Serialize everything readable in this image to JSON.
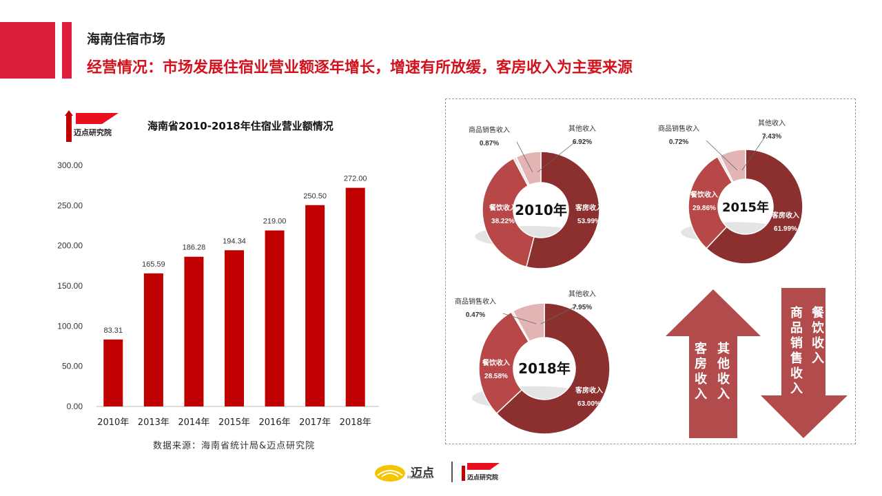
{
  "header": {
    "title": "海南住宿市场",
    "subtitle": "经营情况：市场发展住宿业营业额逐年增长，增速有所放缓，客房收入为主要来源"
  },
  "logo": {
    "name": "迈点研究院"
  },
  "source": "数据来源：海南省统计局&迈点研究院",
  "footer": {
    "brand": "迈点",
    "brand_sub": "Meadin.com",
    "institute": "迈点研究院"
  },
  "arrows": {
    "up_label": "客房收入\n其他收入",
    "down_label": "商品销售收入\n餐饮收入"
  },
  "colors": {
    "bar": "#c00000",
    "accent": "#dc1e3c",
    "donut_room": "#8c2f2f",
    "donut_food": "#b84848",
    "donut_other": "#e2b4b4",
    "donut_goods": "#f0dede"
  },
  "chart_data": [
    {
      "type": "bar",
      "title": "海南省2010-2018年住宿业营业额情况",
      "categories": [
        "2010年",
        "2013年",
        "2014年",
        "2015年",
        "2016年",
        "2017年",
        "2018年"
      ],
      "values": [
        83.31,
        165.59,
        186.28,
        194.34,
        219.0,
        250.5,
        272.0
      ],
      "value_labels": [
        "83.31",
        "165.59",
        "186.28",
        "194.34",
        "219.00",
        "250.50",
        "272.00"
      ],
      "yticks": [
        "0.00",
        "50.00",
        "100.00",
        "150.00",
        "200.00",
        "250.00",
        "300.00"
      ],
      "ylim": [
        0,
        300
      ],
      "grid": false
    },
    {
      "type": "pie",
      "title": "2010年",
      "slices": [
        {
          "name": "客房收入",
          "value": 53.99,
          "label": "53.99%"
        },
        {
          "name": "餐饮收入",
          "value": 38.22,
          "label": "38.22%"
        },
        {
          "name": "商品销售收入",
          "value": 0.87,
          "label": "0.87%"
        },
        {
          "name": "其他收入",
          "value": 6.92,
          "label": "6.92%"
        }
      ]
    },
    {
      "type": "pie",
      "title": "2015年",
      "slices": [
        {
          "name": "客房收入",
          "value": 61.99,
          "label": "61.99%"
        },
        {
          "name": "餐饮收入",
          "value": 29.86,
          "label": "29.86%"
        },
        {
          "name": "商品销售收入",
          "value": 0.72,
          "label": "0.72%"
        },
        {
          "name": "其他收入",
          "value": 7.43,
          "label": "7.43%"
        }
      ]
    },
    {
      "type": "pie",
      "title": "2018年",
      "slices": [
        {
          "name": "客房收入",
          "value": 63.0,
          "label": "63.00%"
        },
        {
          "name": "餐饮收入",
          "value": 28.58,
          "label": "28.58%"
        },
        {
          "name": "商品销售收入",
          "value": 0.47,
          "label": "0.47%"
        },
        {
          "name": "其他收入",
          "value": 7.95,
          "label": "7.95%"
        }
      ]
    }
  ]
}
